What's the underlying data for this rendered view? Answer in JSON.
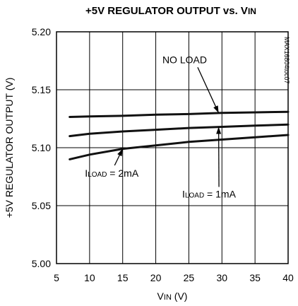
{
  "chart_data": {
    "type": "line",
    "title": "+5V REGULATOR OUTPUT vs. VIN",
    "title_main": "+5V REGULATOR OUTPUT vs. V",
    "title_sub": "IN",
    "xlabel_main": "V",
    "xlabel_sub": "IN",
    "xlabel_suffix": " (V)",
    "ylabel": "+5V REGULATOR OUTPUT (V)",
    "xlim": [
      5,
      40
    ],
    "ylim": [
      5.0,
      5.2
    ],
    "x_ticks": [
      5,
      10,
      15,
      20,
      25,
      30,
      35,
      40
    ],
    "y_ticks": [
      5.0,
      5.05,
      5.1,
      5.15,
      5.2
    ],
    "y_tick_labels": [
      "5.00",
      "5.05",
      "5.10",
      "5.15",
      "5.20"
    ],
    "grid": true,
    "series": [
      {
        "name": "NO LOAD",
        "x": [
          7,
          10,
          15,
          20,
          25,
          30,
          35,
          40
        ],
        "values": [
          5.1265,
          5.127,
          5.1275,
          5.1285,
          5.129,
          5.13,
          5.1305,
          5.131
        ]
      },
      {
        "name": "ILOAD = 1mA",
        "x": [
          7,
          10,
          15,
          20,
          25,
          30,
          35,
          40
        ],
        "values": [
          5.11,
          5.112,
          5.114,
          5.1155,
          5.117,
          5.118,
          5.119,
          5.12
        ]
      },
      {
        "name": "ILOAD = 2mA",
        "x": [
          7,
          10,
          15,
          20,
          25,
          30,
          35,
          40
        ],
        "values": [
          5.09,
          5.094,
          5.099,
          5.102,
          5.105,
          5.107,
          5.109,
          5.111
        ]
      }
    ],
    "annotations": [
      {
        "id": "noload",
        "text": "NO LOAD",
        "target_x": 29.5,
        "target_y": 5.13,
        "label_x": 21.0,
        "label_y": 5.173
      },
      {
        "id": "load1",
        "main": "I",
        "sub": "LOAD",
        "suffix": " = 2mA",
        "target_x": 15.0,
        "target_y": 5.099,
        "label_x": 9.3,
        "label_y": 5.075
      },
      {
        "id": "load2",
        "main": "I",
        "sub": "LOAD",
        "suffix": " = 1mA",
        "target_x": 29.5,
        "target_y": 5.118,
        "label_x": 24.0,
        "label_y": 5.057
      }
    ],
    "part_tag": "MAX16804toc07"
  }
}
